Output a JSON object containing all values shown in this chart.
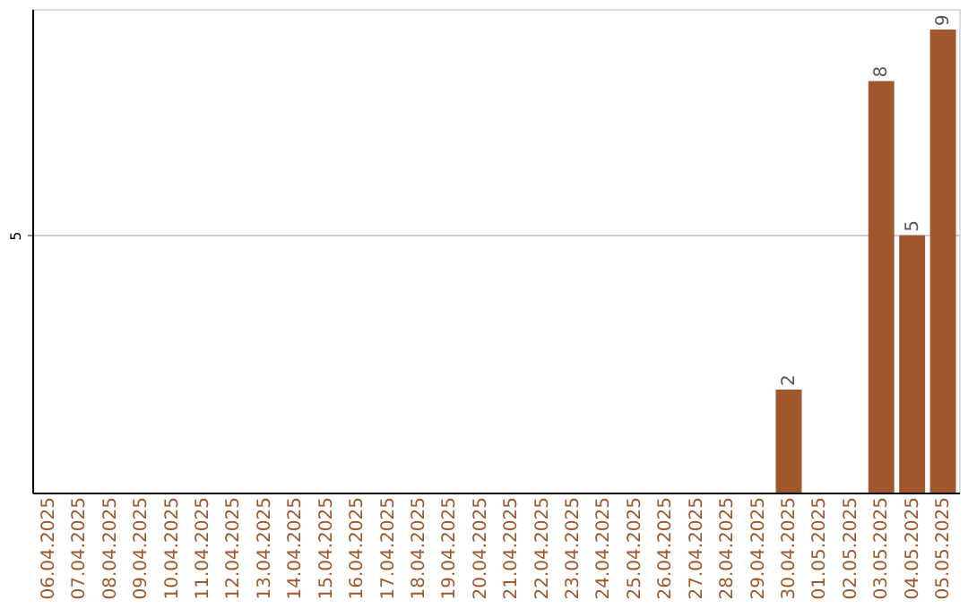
{
  "chart_data": {
    "type": "bar",
    "categories": [
      "06.04.2025",
      "07.04.2025",
      "08.04.2025",
      "09.04.2025",
      "10.04.2025",
      "11.04.2025",
      "12.04.2025",
      "13.04.2025",
      "14.04.2025",
      "15.04.2025",
      "16.04.2025",
      "17.04.2025",
      "18.04.2025",
      "19.04.2025",
      "20.04.2025",
      "21.04.2025",
      "22.04.2025",
      "23.04.2025",
      "24.04.2025",
      "25.04.2025",
      "26.04.2025",
      "27.04.2025",
      "28.04.2025",
      "29.04.2025",
      "30.04.2025",
      "01.05.2025",
      "02.05.2025",
      "03.05.2025",
      "04.05.2025",
      "05.05.2025"
    ],
    "values": [
      null,
      null,
      null,
      null,
      null,
      null,
      null,
      null,
      null,
      null,
      null,
      null,
      null,
      null,
      null,
      null,
      null,
      null,
      null,
      null,
      null,
      null,
      null,
      null,
      2,
      null,
      null,
      8,
      5,
      9
    ],
    "color": "#a0572b",
    "ylim": [
      0,
      9.4
    ],
    "yticks": [
      5
    ],
    "grid": "y",
    "data_labels": true
  }
}
